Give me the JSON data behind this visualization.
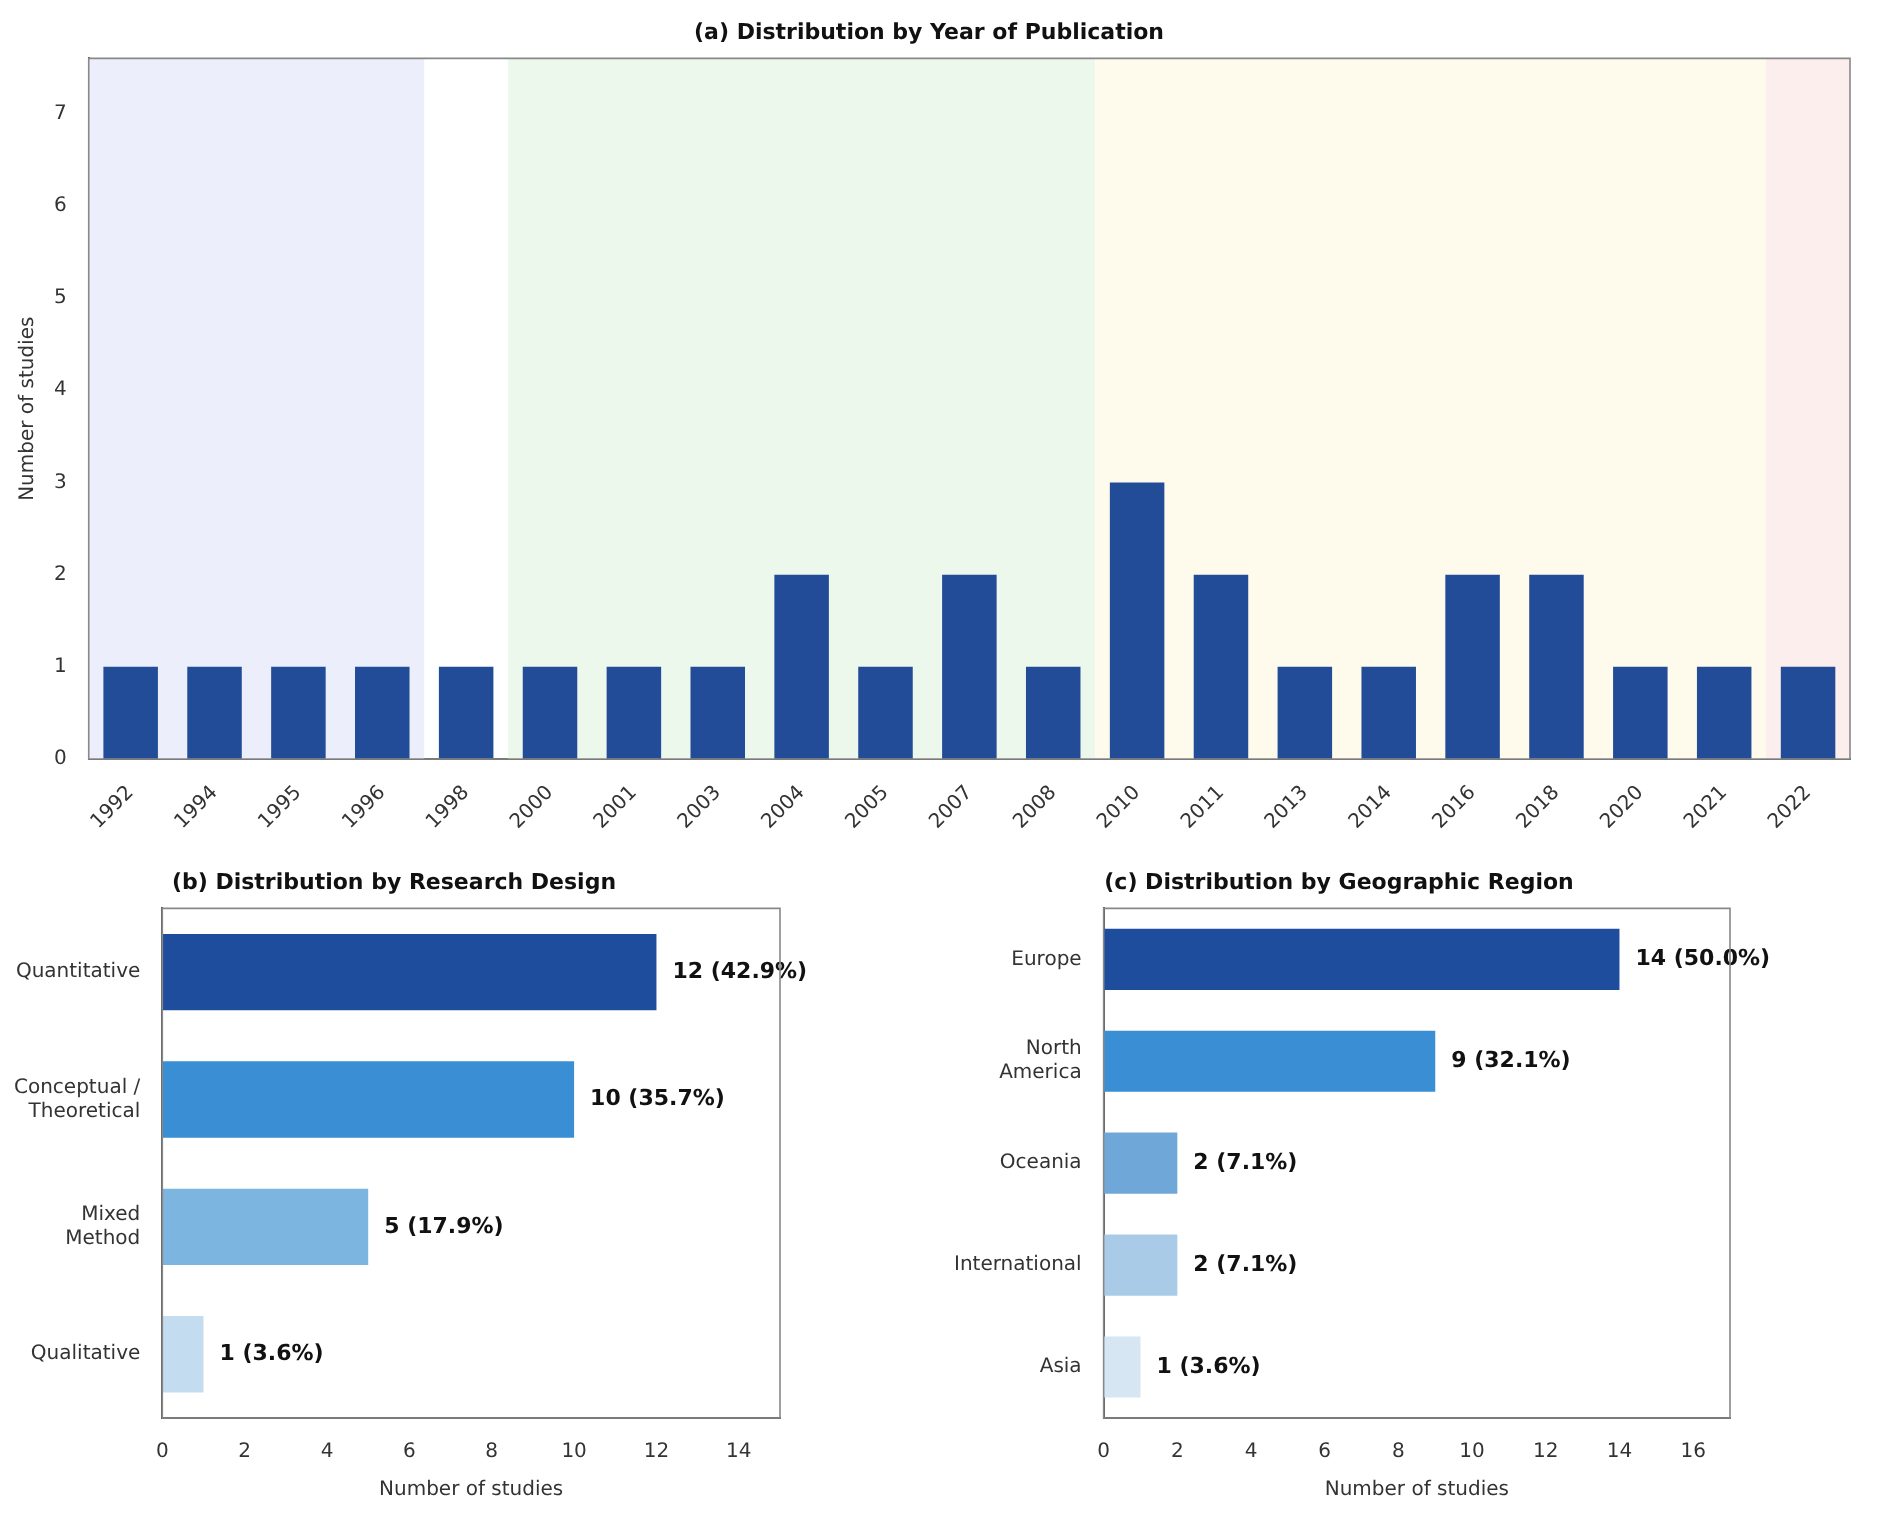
{
  "chart_data": [
    {
      "type": "bar",
      "title": "(a) Distribution by Year of Publication",
      "ylabel": "Number of studies",
      "categories": [
        "1992",
        "1994",
        "1995",
        "1996",
        "1998",
        "2000",
        "2001",
        "2003",
        "2004",
        "2005",
        "2007",
        "2008",
        "2010",
        "2011",
        "2013",
        "2014",
        "2016",
        "2018",
        "2020",
        "2021",
        "2022"
      ],
      "values": [
        1,
        1,
        1,
        1,
        1,
        1,
        1,
        1,
        2,
        1,
        2,
        1,
        3,
        2,
        1,
        1,
        2,
        2,
        1,
        1,
        1
      ],
      "color": "#234c98",
      "ylim": [
        0,
        7.6
      ],
      "yticks": [
        0,
        1,
        2,
        3,
        4,
        5,
        6,
        7
      ],
      "bands": [
        {
          "axis": "x",
          "from": "1992",
          "to": "1996",
          "color": "#eceefc"
        },
        {
          "axis": "x",
          "from": "2000",
          "to": "2008",
          "color": "#edf8ed"
        },
        {
          "axis": "x",
          "from": "2010",
          "to": "2021",
          "color": "#fffbec"
        },
        {
          "axis": "x",
          "from": "2022",
          "to": "2022",
          "color": "#fdeeee"
        }
      ]
    },
    {
      "type": "bar",
      "orientation": "horizontal",
      "title": "(b) Distribution by Research Design",
      "xlabel": "Number of studies",
      "categories": [
        "Quantitative",
        "Conceptual / Theoretical",
        "Mixed Method",
        "Qualitative"
      ],
      "values": [
        12,
        10,
        5,
        1
      ],
      "colors": [
        "#1f4d9e",
        "#3a8ed3",
        "#7cb5e0",
        "#c4dcef"
      ],
      "value_labels": [
        "12 (42.9%)",
        "10 (35.7%)",
        "5 (17.9%)",
        "1 (3.6%)"
      ],
      "xlim": [
        0,
        15
      ],
      "xticks": [
        0,
        2,
        4,
        6,
        8,
        10,
        12,
        14
      ]
    },
    {
      "type": "bar",
      "orientation": "horizontal",
      "title": "(c) Distribution by Geographic Region",
      "xlabel": "Number of studies",
      "categories": [
        "Europe",
        "North America",
        "Oceania",
        "International",
        "Asia"
      ],
      "values": [
        14,
        9,
        2,
        2,
        1
      ],
      "colors": [
        "#1f4d9e",
        "#3a8ed3",
        "#6ea7d8",
        "#a9cbe8",
        "#d6e6f3"
      ],
      "value_labels": [
        "14 (50.0%)",
        "9 (32.1%)",
        "2 (7.1%)",
        "2 (7.1%)",
        "1 (3.6%)"
      ],
      "xlim": [
        0,
        17
      ],
      "xticks": [
        0,
        2,
        4,
        6,
        8,
        10,
        12,
        14,
        16
      ]
    }
  ]
}
